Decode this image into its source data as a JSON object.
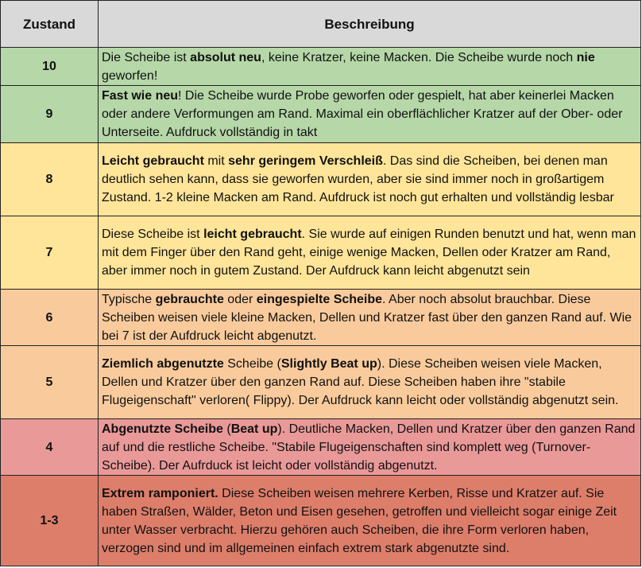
{
  "header": {
    "col_zustand": "Zustand",
    "col_beschreibung": "Beschreibung",
    "color": "#d9d9d9"
  },
  "rows": [
    {
      "zustand": "10",
      "color": "#b6d7a8",
      "segments": [
        {
          "t": "Die Scheibe ist ",
          "b": false
        },
        {
          "t": "absolut neu",
          "b": true
        },
        {
          "t": ", keine Kratzer, keine Macken. Die Scheibe wurde noch ",
          "b": false
        },
        {
          "t": "nie",
          "b": true
        },
        {
          "t": " geworfen!",
          "b": false
        }
      ]
    },
    {
      "zustand": "9",
      "color": "#b6d7a8",
      "segments": [
        {
          "t": "Fast wie neu",
          "b": true
        },
        {
          "t": "! Die Scheibe wurde Probe geworfen oder gespielt, hat aber keinerlei Macken oder andere Verformungen am Rand. Maximal ein oberflächlicher Kratzer auf der Ober- oder Unterseite. Aufdruck vollständig in takt",
          "b": false
        }
      ]
    },
    {
      "zustand": "8",
      "color": "#ffe599",
      "segments": [
        {
          "t": "Leicht gebraucht",
          "b": true
        },
        {
          "t": " mit ",
          "b": false
        },
        {
          "t": "sehr geringem Verschleiß",
          "b": true
        },
        {
          "t": ". Das sind die Scheiben, bei denen man deutlich sehen kann, dass sie geworfen wurden, aber sie sind immer noch in großartigem Zustand. 1-2 kleine Macken am Rand. Aufdruck ist noch gut erhalten und vollständig lesbar",
          "b": false
        }
      ]
    },
    {
      "zustand": "7",
      "color": "#ffe599",
      "segments": [
        {
          "t": "Diese Scheibe ist ",
          "b": false
        },
        {
          "t": "leicht gebraucht",
          "b": true
        },
        {
          "t": ". Sie wurde auf einigen Runden benutzt und hat, wenn man mit dem Finger über den Rand geht, einige wenige Macken, Dellen oder Kratzer am Rand, aber immer noch in gutem Zustand. Der Aufdruck kann leicht abgenutzt sein",
          "b": false
        }
      ]
    },
    {
      "zustand": "6",
      "color": "#f9cb9c",
      "segments": [
        {
          "t": "Typische ",
          "b": false
        },
        {
          "t": "gebrauchte",
          "b": true
        },
        {
          "t": " oder ",
          "b": false
        },
        {
          "t": "eingespielte Scheibe",
          "b": true
        },
        {
          "t": ". Aber noch absolut brauchbar. Diese Scheiben weisen viele kleine Macken, Dellen und Kratzer fast über den ganzen Rand auf. Wie bei 7 ist der Aufdruck leicht abgenutzt.",
          "b": false
        }
      ]
    },
    {
      "zustand": "5",
      "color": "#f9cb9c",
      "segments": [
        {
          "t": "Ziemlich abgenutzte",
          "b": true
        },
        {
          "t": " Scheibe (",
          "b": false
        },
        {
          "t": "Slightly Beat up",
          "b": true
        },
        {
          "t": "). Diese Scheiben weisen viele Macken, Dellen und Kratzer über den ganzen Rand auf. Diese Scheiben haben ihre \"stabile Flugeigenschaft\" verloren( Flippy). Der Aufdruck kann leicht oder vollständig abgenutzt sein.",
          "b": false
        }
      ]
    },
    {
      "zustand": "4",
      "color": "#ea9999",
      "segments": [
        {
          "t": "Abgenutzte Scheibe",
          "b": true
        },
        {
          "t": " (",
          "b": false
        },
        {
          "t": "Beat up",
          "b": true
        },
        {
          "t": "). Deutliche  Macken, Dellen und Kratzer über den ganzen Rand auf und die restliche Scheibe. \"Stabile Flugeigenschaften sind komplett weg (Turnover-Scheibe). Der Aufrduck ist leicht oder vollständig abgenutzt.",
          "b": false
        }
      ]
    },
    {
      "zustand": "1-3",
      "color": "#dd7e6b",
      "segments": [
        {
          "t": "Extrem ramponiert.",
          "b": true
        },
        {
          "t": " Diese Scheiben weisen mehrere Kerben, Risse und Kratzer auf. Sie haben Straßen, Wälder, Beton und Eisen gesehen, getroffen und vielleicht sogar einige Zeit unter Wasser verbracht. Hierzu gehören auch Scheiben, die ihre Form verloren haben, verzogen sind und im allgemeinen einfach extrem stark abgenutzte sind.",
          "b": false
        }
      ]
    }
  ]
}
